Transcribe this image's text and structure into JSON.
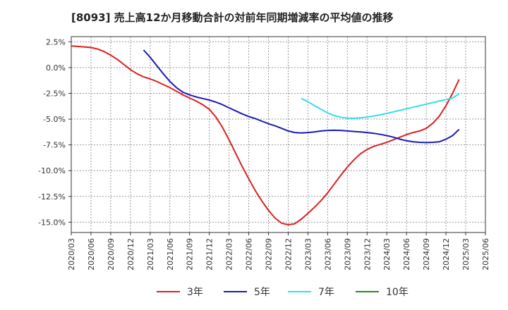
{
  "chart_data": {
    "type": "line",
    "title": "[8093]  売上高12か月移動合計の対前年同期増減率の平均値の推移",
    "xlabel": "",
    "ylabel": "",
    "ylim": [
      -16.0,
      3.0
    ],
    "y_ticks": [
      2.5,
      0.0,
      -2.5,
      -5.0,
      -7.5,
      -10.0,
      -12.5,
      -15.0
    ],
    "y_tick_labels": [
      "2.5%",
      "0.0%",
      "-2.5%",
      "-5.0%",
      "-7.5%",
      "-10.0%",
      "-12.5%",
      "-15.0%"
    ],
    "x_ticks": [
      "2020/03",
      "2020/06",
      "2020/09",
      "2020/12",
      "2021/03",
      "2021/06",
      "2021/09",
      "2021/12",
      "2022/03",
      "2022/06",
      "2022/09",
      "2022/12",
      "2023/03",
      "2023/06",
      "2023/09",
      "2023/12",
      "2024/03",
      "2024/06",
      "2024/09",
      "2024/12",
      "2025/03",
      "2025/06"
    ],
    "grid": true,
    "legend_position": "bottom",
    "series": [
      {
        "name": "3年",
        "color": "#dd1f1f",
        "points": [
          [
            "2020/03",
            2.1
          ],
          [
            "2020/04",
            2.05
          ],
          [
            "2020/05",
            2.0
          ],
          [
            "2020/06",
            1.95
          ],
          [
            "2020/07",
            1.8
          ],
          [
            "2020/08",
            1.55
          ],
          [
            "2020/09",
            1.2
          ],
          [
            "2020/10",
            0.8
          ],
          [
            "2020/11",
            0.3
          ],
          [
            "2020/12",
            -0.2
          ],
          [
            "2021/01",
            -0.6
          ],
          [
            "2021/02",
            -0.9
          ],
          [
            "2021/03",
            -1.1
          ],
          [
            "2021/04",
            -1.35
          ],
          [
            "2021/05",
            -1.65
          ],
          [
            "2021/06",
            -1.95
          ],
          [
            "2021/07",
            -2.3
          ],
          [
            "2021/08",
            -2.65
          ],
          [
            "2021/09",
            -2.95
          ],
          [
            "2021/10",
            -3.25
          ],
          [
            "2021/11",
            -3.6
          ],
          [
            "2021/12",
            -4.05
          ],
          [
            "2022/01",
            -4.8
          ],
          [
            "2022/02",
            -5.8
          ],
          [
            "2022/03",
            -7.0
          ],
          [
            "2022/04",
            -8.3
          ],
          [
            "2022/05",
            -9.6
          ],
          [
            "2022/06",
            -10.8
          ],
          [
            "2022/07",
            -11.95
          ],
          [
            "2022/08",
            -12.95
          ],
          [
            "2022/09",
            -13.85
          ],
          [
            "2022/10",
            -14.6
          ],
          [
            "2022/11",
            -15.1
          ],
          [
            "2022/12",
            -15.25
          ],
          [
            "2023/01",
            -15.15
          ],
          [
            "2023/02",
            -14.7
          ],
          [
            "2023/03",
            -14.15
          ],
          [
            "2023/04",
            -13.55
          ],
          [
            "2023/05",
            -12.9
          ],
          [
            "2023/06",
            -12.15
          ],
          [
            "2023/07",
            -11.3
          ],
          [
            "2023/08",
            -10.45
          ],
          [
            "2023/09",
            -9.65
          ],
          [
            "2023/10",
            -8.95
          ],
          [
            "2023/11",
            -8.35
          ],
          [
            "2023/12",
            -7.95
          ],
          [
            "2024/01",
            -7.65
          ],
          [
            "2024/02",
            -7.45
          ],
          [
            "2024/03",
            -7.25
          ],
          [
            "2024/04",
            -7.0
          ],
          [
            "2024/05",
            -6.75
          ],
          [
            "2024/06",
            -6.5
          ],
          [
            "2024/07",
            -6.3
          ],
          [
            "2024/08",
            -6.15
          ],
          [
            "2024/09",
            -5.9
          ],
          [
            "2024/10",
            -5.4
          ],
          [
            "2024/11",
            -4.7
          ],
          [
            "2024/12",
            -3.7
          ],
          [
            "2025/01",
            -2.5
          ],
          [
            "2025/02",
            -1.15
          ]
        ]
      },
      {
        "name": "5年",
        "color": "#1a1ab4",
        "points": [
          [
            "2021/02",
            1.7
          ],
          [
            "2021/03",
            1.0
          ],
          [
            "2021/04",
            0.2
          ],
          [
            "2021/05",
            -0.6
          ],
          [
            "2021/06",
            -1.35
          ],
          [
            "2021/07",
            -1.95
          ],
          [
            "2021/08",
            -2.4
          ],
          [
            "2021/09",
            -2.65
          ],
          [
            "2021/10",
            -2.85
          ],
          [
            "2021/11",
            -3.0
          ],
          [
            "2021/12",
            -3.15
          ],
          [
            "2022/01",
            -3.35
          ],
          [
            "2022/02",
            -3.6
          ],
          [
            "2022/03",
            -3.9
          ],
          [
            "2022/04",
            -4.2
          ],
          [
            "2022/05",
            -4.5
          ],
          [
            "2022/06",
            -4.75
          ],
          [
            "2022/07",
            -4.95
          ],
          [
            "2022/08",
            -5.2
          ],
          [
            "2022/09",
            -5.45
          ],
          [
            "2022/10",
            -5.65
          ],
          [
            "2022/11",
            -5.9
          ],
          [
            "2022/12",
            -6.15
          ],
          [
            "2023/01",
            -6.3
          ],
          [
            "2023/02",
            -6.35
          ],
          [
            "2023/03",
            -6.3
          ],
          [
            "2023/04",
            -6.25
          ],
          [
            "2023/05",
            -6.15
          ],
          [
            "2023/06",
            -6.1
          ],
          [
            "2023/07",
            -6.08
          ],
          [
            "2023/08",
            -6.1
          ],
          [
            "2023/09",
            -6.15
          ],
          [
            "2023/10",
            -6.2
          ],
          [
            "2023/11",
            -6.25
          ],
          [
            "2023/12",
            -6.3
          ],
          [
            "2024/01",
            -6.38
          ],
          [
            "2024/02",
            -6.48
          ],
          [
            "2024/03",
            -6.6
          ],
          [
            "2024/04",
            -6.75
          ],
          [
            "2024/05",
            -6.95
          ],
          [
            "2024/06",
            -7.1
          ],
          [
            "2024/07",
            -7.2
          ],
          [
            "2024/08",
            -7.25
          ],
          [
            "2024/09",
            -7.28
          ],
          [
            "2024/10",
            -7.25
          ],
          [
            "2024/11",
            -7.2
          ],
          [
            "2024/12",
            -6.95
          ],
          [
            "2025/01",
            -6.6
          ],
          [
            "2025/02",
            -6.0
          ]
        ]
      },
      {
        "name": "7年",
        "color": "#33e0e8",
        "points": [
          [
            "2023/02",
            -3.0
          ],
          [
            "2023/03",
            -3.3
          ],
          [
            "2023/04",
            -3.7
          ],
          [
            "2023/05",
            -4.05
          ],
          [
            "2023/06",
            -4.4
          ],
          [
            "2023/07",
            -4.65
          ],
          [
            "2023/08",
            -4.82
          ],
          [
            "2023/09",
            -4.9
          ],
          [
            "2023/10",
            -4.92
          ],
          [
            "2023/11",
            -4.88
          ],
          [
            "2023/12",
            -4.8
          ],
          [
            "2024/01",
            -4.7
          ],
          [
            "2024/02",
            -4.58
          ],
          [
            "2024/03",
            -4.45
          ],
          [
            "2024/04",
            -4.3
          ],
          [
            "2024/05",
            -4.15
          ],
          [
            "2024/06",
            -4.0
          ],
          [
            "2024/07",
            -3.85
          ],
          [
            "2024/08",
            -3.7
          ],
          [
            "2024/09",
            -3.55
          ],
          [
            "2024/10",
            -3.4
          ],
          [
            "2024/11",
            -3.25
          ],
          [
            "2024/12",
            -3.1
          ],
          [
            "2025/01",
            -2.95
          ],
          [
            "2025/02",
            -2.55
          ]
        ]
      },
      {
        "name": "10年",
        "color": "#228b22",
        "points": []
      }
    ]
  }
}
